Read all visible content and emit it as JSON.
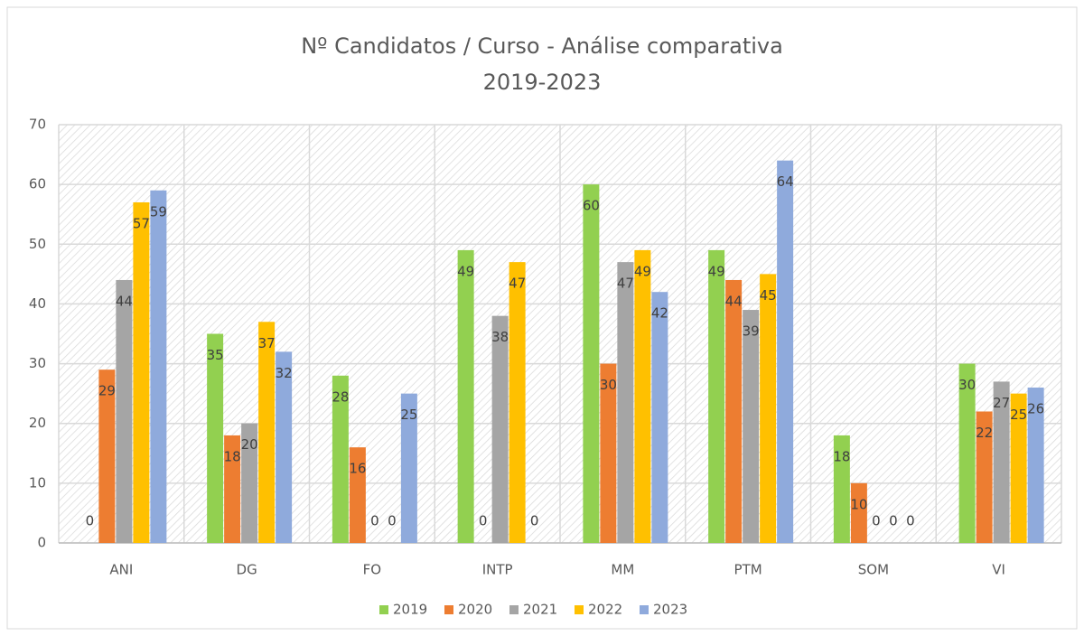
{
  "chart_data": {
    "type": "bar",
    "title": "Nº Candidatos / Curso - Análise comparativa",
    "subtitle": "2019-2023",
    "categories": [
      "ANI",
      "DG",
      "FO",
      "INTP",
      "MM",
      "PTM",
      "SOM",
      "VI"
    ],
    "series": [
      {
        "name": "2019",
        "color": "#92d050",
        "values": [
          0,
          35,
          28,
          49,
          60,
          49,
          18,
          30
        ]
      },
      {
        "name": "2020",
        "color": "#ed7d31",
        "values": [
          29,
          18,
          16,
          0,
          30,
          44,
          10,
          22
        ]
      },
      {
        "name": "2021",
        "color": "#a5a5a5",
        "values": [
          44,
          20,
          0,
          38,
          47,
          39,
          0,
          27
        ]
      },
      {
        "name": "2022",
        "color": "#ffc000",
        "values": [
          57,
          37,
          0,
          47,
          49,
          45,
          0,
          25
        ]
      },
      {
        "name": "2023",
        "color": "#8faadc",
        "values": [
          59,
          32,
          25,
          0,
          42,
          64,
          0,
          26
        ]
      }
    ],
    "ylim": [
      0,
      70
    ],
    "yticks": [
      0,
      10,
      20,
      30,
      40,
      50,
      60,
      70
    ],
    "grid": true,
    "legend": "bottom"
  }
}
